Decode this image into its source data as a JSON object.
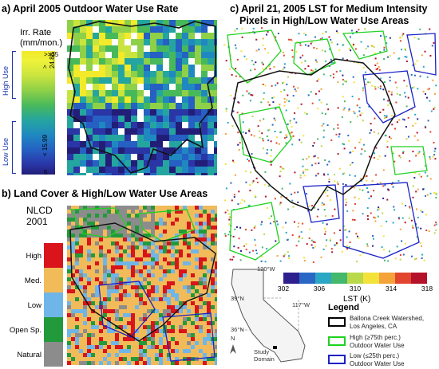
{
  "panel_a": {
    "title": "a) April 2005 Outdoor Water Use Rate",
    "legend_title": "Irr. Rate\n(mm/mon.)",
    "tick_max": ">>35",
    "tick_high_threshold": "> 24.88",
    "tick_low_threshold": "< 15.99",
    "tick_min": "5",
    "high_use_label": "High Use",
    "low_use_label": "Low Use",
    "colors": [
      "#f2ea2a",
      "#c9e43e",
      "#8ed048",
      "#48b95b",
      "#25a5a0",
      "#1f88c0",
      "#2560c2",
      "#2a35a6",
      "#221e78"
    ]
  },
  "panel_b": {
    "title": "b) Land Cover & High/Low Water Use Areas",
    "legend_title_line1": "NLCD",
    "legend_title_line2": "2001",
    "classes": [
      {
        "label": "High",
        "color": "#d9141b"
      },
      {
        "label": "Med.",
        "color": "#f2bb5a"
      },
      {
        "label": "Low",
        "color": "#6fb6e8"
      },
      {
        "label": "Open Sp.",
        "color": "#229a3c"
      },
      {
        "label": "Natural",
        "color": "#8c8c8c"
      }
    ]
  },
  "panel_c": {
    "title_line1": "c) April 21, 2005 LST for Medium Intensity",
    "title_line2": "Pixels in High/Low Water Use Areas",
    "lst_ticks": [
      "302",
      "306",
      "310",
      "314",
      "318"
    ],
    "lst_label": "LST (K)",
    "lst_colors": [
      "#2e1f8f",
      "#2a67c4",
      "#2ba6c4",
      "#45b86b",
      "#b9d94a",
      "#f3e23a",
      "#f4a23a",
      "#e2452e",
      "#b4122b"
    ]
  },
  "inset": {
    "lon1": "120°W",
    "lon2": "117°W",
    "lat1": "39°N",
    "lat2": "36°N",
    "north": "N",
    "study_domain": "Study\nDomain"
  },
  "legend": {
    "title": "Legend",
    "items": [
      {
        "line1": "Ballona Creek Watershed,",
        "line2": "Los Angeles, CA",
        "color": "#000000"
      },
      {
        "line1": "High (≥75th perc.)",
        "line2": "Outdoor Water Use",
        "color": "#1fd21f"
      },
      {
        "line1": "Low (≤25th perc.)",
        "line2": "Outdoor Water Use",
        "color": "#1a22c8"
      }
    ]
  }
}
